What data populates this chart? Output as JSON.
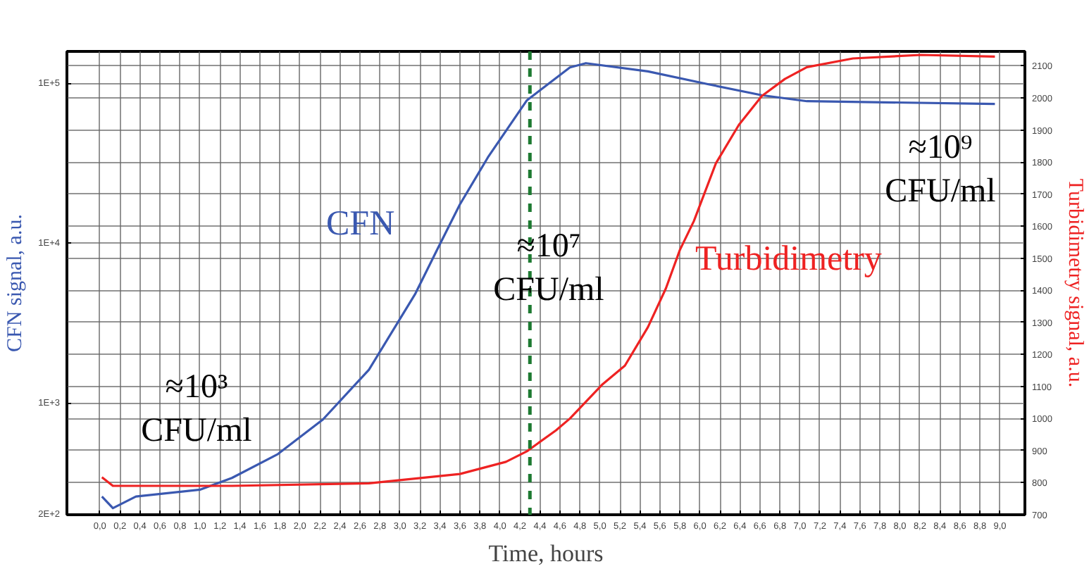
{
  "chart_data": {
    "type": "line",
    "xlabel": "Time, hours",
    "ylabel": "CFN signal, a.u.",
    "y2label": "Turbidimetry signal, a.u.",
    "x": [
      0.02,
      0.13,
      0.36,
      1.0,
      1.32,
      1.78,
      2.23,
      2.69,
      3.15,
      3.37,
      3.6,
      3.88,
      4.27,
      4.7,
      4.86,
      5.48,
      6.07,
      6.62,
      7.07,
      8.95
    ],
    "series": [
      {
        "name": "CFN",
        "color": "#3a58b0",
        "values": [
          260,
          220,
          260,
          287,
          340,
          480,
          790,
          1620,
          4800,
          9100,
          17600,
          34700,
          79000,
          127000,
          135000,
          120000,
          100000,
          85000,
          78000,
          75000
        ]
      },
      {
        "name": "Turbidimetry",
        "color": "#ee2222",
        "axis": "y2",
        "x": [
          0.02,
          0.13,
          1.32,
          2.69,
          3.6,
          4.06,
          4.27,
          4.56,
          4.7,
          5.02,
          5.25,
          5.48,
          5.66,
          5.8,
          5.94,
          6.16,
          6.39,
          6.62,
          6.85,
          7.07,
          7.53,
          8.21,
          8.95
        ],
        "values": [
          817,
          790,
          790,
          798,
          827,
          865,
          898,
          963,
          1000,
          1105,
          1165,
          1285,
          1406,
          1526,
          1616,
          1796,
          1916,
          2006,
          2059,
          2096,
          2123,
          2134,
          2129
        ]
      }
    ],
    "xlim": [
      -0.33,
      9.25
    ],
    "xticks": [
      {
        "value": 0.0,
        "label": "0,0"
      },
      {
        "value": 0.2,
        "label": "0,2"
      },
      {
        "value": 0.4,
        "label": "0,4"
      },
      {
        "value": 0.6,
        "label": "0,6"
      },
      {
        "value": 0.8,
        "label": "0,8"
      },
      {
        "value": 1.0,
        "label": "1,0"
      },
      {
        "value": 1.2,
        "label": "1,2"
      },
      {
        "value": 1.4,
        "label": "1,4"
      },
      {
        "value": 1.6,
        "label": "1,6"
      },
      {
        "value": 1.8,
        "label": "1,8"
      },
      {
        "value": 2.0,
        "label": "2,0"
      },
      {
        "value": 2.2,
        "label": "2,2"
      },
      {
        "value": 2.4,
        "label": "2,4"
      },
      {
        "value": 2.6,
        "label": "2,6"
      },
      {
        "value": 2.8,
        "label": "2,8"
      },
      {
        "value": 3.0,
        "label": "3,0"
      },
      {
        "value": 3.2,
        "label": "3,2"
      },
      {
        "value": 3.4,
        "label": "3,4"
      },
      {
        "value": 3.6,
        "label": "3,6"
      },
      {
        "value": 3.8,
        "label": "3,8"
      },
      {
        "value": 4.0,
        "label": "4,0"
      },
      {
        "value": 4.2,
        "label": "4,2"
      },
      {
        "value": 4.4,
        "label": "4,4"
      },
      {
        "value": 4.6,
        "label": "4,6"
      },
      {
        "value": 4.8,
        "label": "4,8"
      },
      {
        "value": 5.0,
        "label": "5,0"
      },
      {
        "value": 5.2,
        "label": "5,2"
      },
      {
        "value": 5.4,
        "label": "5,4"
      },
      {
        "value": 5.6,
        "label": "5,6"
      },
      {
        "value": 5.8,
        "label": "5,8"
      },
      {
        "value": 6.0,
        "label": "6,0"
      },
      {
        "value": 6.2,
        "label": "6,2"
      },
      {
        "value": 6.4,
        "label": "6,4"
      },
      {
        "value": 6.6,
        "label": "6,6"
      },
      {
        "value": 6.8,
        "label": "6,8"
      },
      {
        "value": 7.0,
        "label": "7,0"
      },
      {
        "value": 7.2,
        "label": "7,2"
      },
      {
        "value": 7.4,
        "label": "7,4"
      },
      {
        "value": 7.6,
        "label": "7,6"
      },
      {
        "value": 7.8,
        "label": "7,8"
      },
      {
        "value": 8.0,
        "label": "8,0"
      },
      {
        "value": 8.2,
        "label": "8,2"
      },
      {
        "value": 8.4,
        "label": "8,4"
      },
      {
        "value": 8.6,
        "label": "8,6"
      },
      {
        "value": 8.8,
        "label": "8,8"
      },
      {
        "value": 9.0,
        "label": "9,0"
      }
    ],
    "ylim": [
      200,
      160000
    ],
    "yticks": [
      {
        "value": 200,
        "label": "2E+2"
      },
      {
        "value": 1000,
        "label": "1E+3"
      },
      {
        "value": 10000,
        "label": "1E+4"
      },
      {
        "value": 100000,
        "label": "1E+5"
      }
    ],
    "log": "y",
    "y2lim": [
      700,
      2145
    ],
    "y2ticks": [
      700,
      800,
      900,
      1000,
      1100,
      1200,
      1300,
      1400,
      1500,
      1600,
      1700,
      1800,
      1900,
      2000,
      2100
    ],
    "grid": true,
    "marker": "none",
    "line_style": "solid",
    "ref_lines": [
      {
        "axis": "x",
        "value": 4.3,
        "color": "#1e7a32",
        "line_style": "dashed"
      }
    ],
    "annotations": [
      "≈10³\nCFU/ml",
      "≈10⁷\nCFU/ml",
      "≈10⁹\nCFU/ml"
    ]
  }
}
